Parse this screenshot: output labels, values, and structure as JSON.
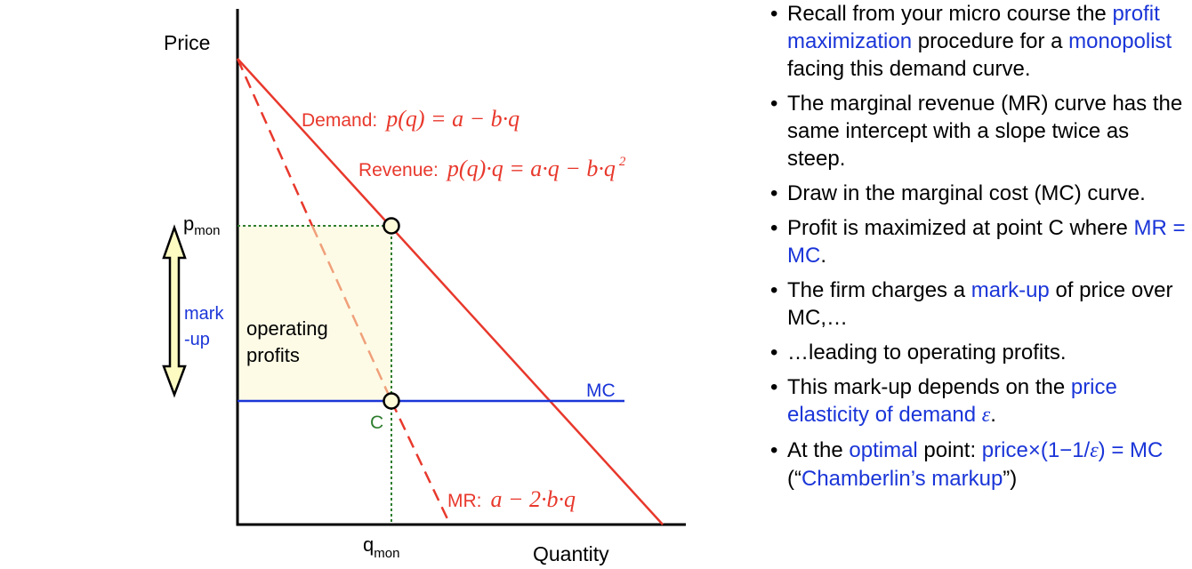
{
  "diagram": {
    "axis_labels": {
      "y": "Price",
      "x": "Quantity"
    },
    "tick_labels": {
      "p_base": "p",
      "p_sub": "mon",
      "q_base": "q",
      "q_sub": "mon"
    },
    "curves": {
      "demand_name": "Demand:",
      "demand_eq": "p(q) = a − b·q",
      "revenue_name": "Revenue:",
      "revenue_eq": "p(q)·q = a·q − b·q",
      "revenue_exp": "2",
      "mr_name": "MR:",
      "mr_eq": "a − 2·b·q",
      "mc_name": "MC"
    },
    "markup_label": [
      "mark",
      "-up"
    ],
    "profit_label": [
      "operating",
      "profits"
    ],
    "point_c": "C",
    "colors": {
      "demand": "#e8382c",
      "mr": "#e8382c",
      "mc": "#1a35d8",
      "guides": "#2e7d2e",
      "profit_fill": "#fdfbe6",
      "point_fill": "#fdfbd8",
      "markup_text": "#1a35d8",
      "arrow_fill": "#fdfbc2"
    }
  },
  "bullets": [
    {
      "parts": [
        {
          "t": "Recall from your micro course the "
        },
        {
          "t": "profit maximization",
          "hl": true
        },
        {
          "t": " procedure for a "
        },
        {
          "t": "monopolist",
          "hl": true
        },
        {
          "t": " facing this demand curve."
        }
      ]
    },
    {
      "parts": [
        {
          "t": "The marginal revenue (MR) curve has the same intercept with a slope twice as steep."
        }
      ]
    },
    {
      "parts": [
        {
          "t": "Draw in the marginal cost (MC) curve."
        }
      ]
    },
    {
      "parts": [
        {
          "t": "Profit is maximized at point C where "
        },
        {
          "t": "MR = MC",
          "hl": true
        },
        {
          "t": "."
        }
      ]
    },
    {
      "parts": [
        {
          "t": "The firm charges a "
        },
        {
          "t": "mark-up",
          "hl": true
        },
        {
          "t": " of price over MC,…"
        }
      ]
    },
    {
      "parts": [
        {
          "t": "…leading to operating profits."
        }
      ]
    },
    {
      "parts": [
        {
          "t": "This mark-up depends on the "
        },
        {
          "t": "price elasticity of demand ",
          "hl": true
        },
        {
          "t": "ε",
          "hl": true,
          "eps": true
        },
        {
          "t": "."
        }
      ]
    },
    {
      "parts": [
        {
          "t": "At the "
        },
        {
          "t": "optimal",
          "hl": true
        },
        {
          "t": " point: "
        },
        {
          "t": "price×(1−1/",
          "hl": true
        },
        {
          "t": "ε",
          "hl": true,
          "eps": true
        },
        {
          "t": ") = MC",
          "hl": true
        },
        {
          "t": " (“"
        },
        {
          "t": "Chamberlin’s markup",
          "hl": true
        },
        {
          "t": "”)"
        }
      ]
    }
  ]
}
